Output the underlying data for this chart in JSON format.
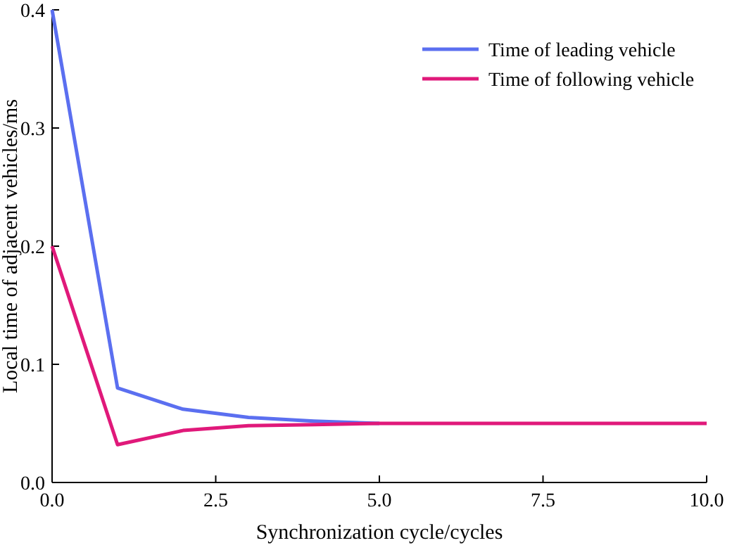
{
  "chart_data": {
    "type": "line",
    "xlabel": "Synchronization cycle/cycles",
    "ylabel": "Local time of adjacent vehicles/ms",
    "x": [
      0,
      1,
      2,
      3,
      4,
      5,
      6,
      7,
      8,
      9,
      10
    ],
    "series": [
      {
        "name": "Time of leading vehicle",
        "color": "#5b6ff0",
        "values": [
          0.4,
          0.08,
          0.062,
          0.055,
          0.052,
          0.05,
          null,
          null,
          null,
          null,
          null
        ]
      },
      {
        "name": "Time of following vehicle",
        "color": "#e0197a",
        "values": [
          0.2,
          0.032,
          0.044,
          0.048,
          0.049,
          0.05,
          0.05,
          0.05,
          0.05,
          0.05,
          0.05
        ]
      }
    ],
    "xlim": [
      0,
      10
    ],
    "xticks": [
      {
        "value": 0,
        "label": "0.0"
      },
      {
        "value": 2.5,
        "label": "2.5"
      },
      {
        "value": 5,
        "label": "5.0"
      },
      {
        "value": 7.5,
        "label": "7.5"
      },
      {
        "value": 10,
        "label": "10.0"
      }
    ],
    "ylim": [
      0,
      0.4
    ],
    "yticks": [
      {
        "value": 0,
        "label": "0.0"
      },
      {
        "value": 0.1,
        "label": "0.1"
      },
      {
        "value": 0.2,
        "label": "0.2"
      },
      {
        "value": 0.3,
        "label": "0.3"
      },
      {
        "value": 0.4,
        "label": "0.4"
      }
    ],
    "legend": "top right",
    "grid": false,
    "marker": "none",
    "line_style": "solid"
  }
}
